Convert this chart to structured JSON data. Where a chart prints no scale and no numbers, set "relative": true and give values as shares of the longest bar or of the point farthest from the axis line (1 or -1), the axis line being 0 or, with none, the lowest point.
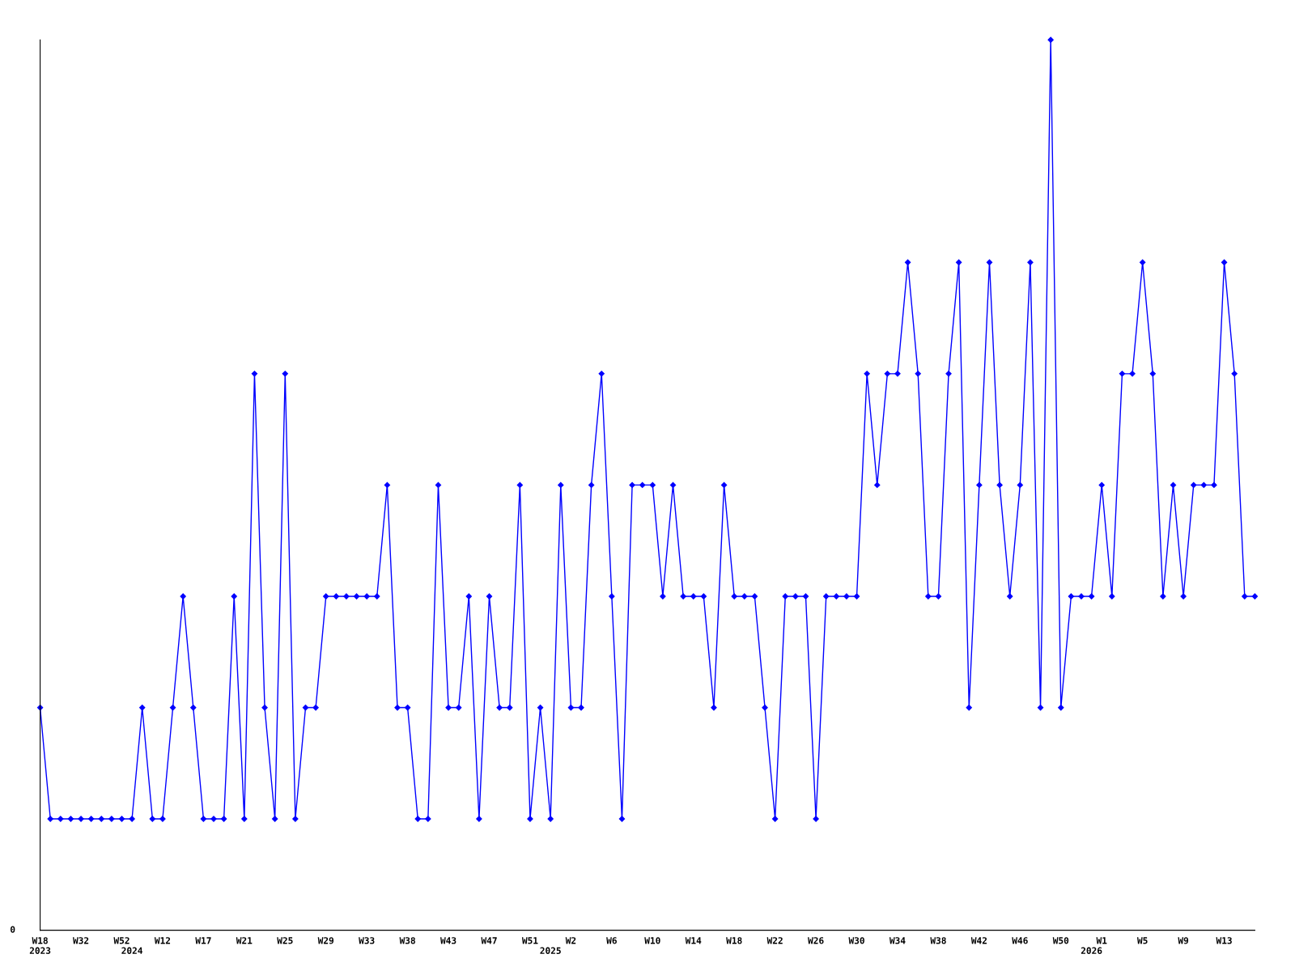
{
  "chart_data": {
    "type": "line",
    "relative": true,
    "marker": "diamond",
    "line_style": "solid",
    "grid": false,
    "legend": false,
    "annotations": [
      "0"
    ],
    "categories": [
      "W18\n2023",
      null,
      null,
      null,
      "W32",
      null,
      null,
      null,
      "W52",
      "\n2024",
      null,
      null,
      "W12",
      null,
      null,
      null,
      "W17",
      null,
      null,
      null,
      "W21",
      null,
      null,
      null,
      "W25",
      null,
      null,
      null,
      "W29",
      null,
      null,
      null,
      "W33",
      null,
      null,
      null,
      "W38",
      null,
      null,
      null,
      "W43",
      null,
      null,
      null,
      "W47",
      null,
      null,
      null,
      "W51",
      null,
      "\n2025",
      null,
      "W2",
      null,
      null,
      null,
      "W6",
      null,
      null,
      null,
      "W10",
      null,
      null,
      null,
      "W14",
      null,
      null,
      null,
      "W18",
      null,
      null,
      null,
      "W22",
      null,
      null,
      null,
      "W26",
      null,
      null,
      null,
      "W30",
      null,
      null,
      null,
      "W34",
      null,
      null,
      null,
      "W38",
      null,
      null,
      null,
      "W42",
      null,
      null,
      null,
      "W46",
      null,
      null,
      null,
      "W50",
      null,
      null,
      "\n2026",
      "W1",
      null,
      null,
      null,
      "W5",
      null,
      null,
      null,
      "W9",
      null,
      null,
      null,
      "W13",
      null,
      null,
      null
    ],
    "series": [
      {
        "color": "#0000ff",
        "values": [
          0.25,
          0.125,
          0.125,
          0.125,
          0.125,
          0.125,
          0.125,
          0.125,
          0.125,
          0.125,
          0.25,
          0.125,
          0.125,
          0.25,
          0.375,
          0.25,
          0.125,
          0.125,
          0.125,
          0.375,
          0.125,
          0.625,
          0.25,
          0.125,
          0.625,
          0.125,
          0.25,
          0.25,
          0.375,
          0.375,
          0.375,
          0.375,
          0.375,
          0.375,
          0.5,
          0.25,
          0.25,
          0.125,
          0.125,
          0.5,
          0.25,
          0.25,
          0.375,
          0.125,
          0.375,
          0.25,
          0.25,
          0.5,
          0.125,
          0.25,
          0.125,
          0.5,
          0.25,
          0.25,
          0.5,
          0.625,
          0.375,
          0.125,
          0.5,
          0.5,
          0.5,
          0.375,
          0.5,
          0.375,
          0.375,
          0.375,
          0.25,
          0.5,
          0.375,
          0.375,
          0.375,
          0.25,
          0.125,
          0.375,
          0.375,
          0.375,
          0.125,
          0.375,
          0.375,
          0.375,
          0.375,
          0.625,
          0.5,
          0.625,
          0.625,
          0.75,
          0.625,
          0.375,
          0.375,
          0.625,
          0.75,
          0.25,
          0.5,
          0.75,
          0.5,
          0.375,
          0.5,
          0.75,
          0.25,
          1,
          0.25,
          0.375,
          0.375,
          0.375,
          0.5,
          0.375,
          0.625,
          0.625,
          0.75,
          0.625,
          0.375,
          0.5,
          0.375,
          0.5,
          0.5,
          0.5,
          0.75,
          0.625,
          0.375,
          0.375
        ]
      }
    ]
  }
}
